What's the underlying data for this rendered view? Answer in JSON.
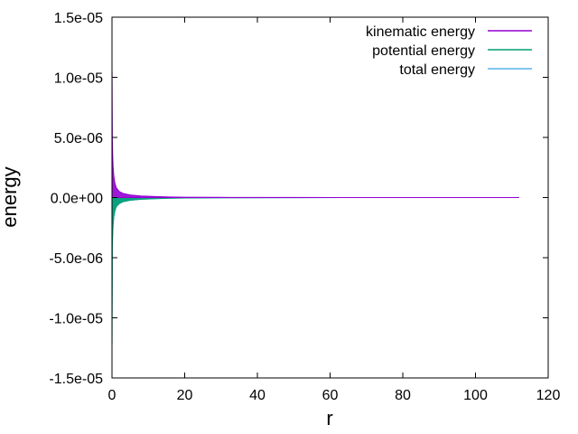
{
  "chart_data": {
    "type": "line",
    "title": "",
    "xlabel": "r",
    "ylabel": "energy",
    "xlim": [
      0,
      120
    ],
    "ylim": [
      -1.5e-05,
      1.5e-05
    ],
    "xticks": [
      0,
      20,
      40,
      60,
      80,
      100,
      120
    ],
    "xtick_labels": [
      "0",
      "20",
      "40",
      "60",
      "80",
      "100",
      "120"
    ],
    "yticks": [
      1.5e-05,
      1e-05,
      5e-06,
      0.0,
      -5e-06,
      -1e-05,
      -1.5e-05
    ],
    "ytick_labels": [
      "1.5e-05",
      "1.0e-05",
      "5.0e-06",
      "0.0e+00",
      "-5.0e-06",
      "-1.0e-05",
      "-1.5e-05"
    ],
    "grid": false,
    "legend": "top-right",
    "series": [
      {
        "name": "kinematic energy",
        "color": "#9400d3",
        "x": [
          0.02,
          0.1,
          0.2,
          0.3,
          0.5,
          0.8,
          1.2,
          2.0,
          3.0,
          5.0,
          8.0,
          12.0,
          16.0,
          20.0,
          30.0,
          50.0,
          80.0,
          112.0
        ],
        "y": [
          1.05e-05,
          5e-06,
          3.5e-06,
          2.6e-06,
          1.8e-06,
          1.2e-06,
          8e-07,
          5e-07,
          3.5e-07,
          2.2e-07,
          1.3e-07,
          8e-08,
          5e-08,
          3e-08,
          1.5e-08,
          6e-09,
          2e-09,
          1e-09
        ]
      },
      {
        "name": "potential energy",
        "color": "#009e73",
        "x": [
          0.02,
          0.1,
          0.2,
          0.3,
          0.5,
          0.8,
          1.2,
          2.0,
          3.0,
          5.0,
          8.0,
          12.0,
          16.0,
          20.0,
          30.0,
          50.0,
          80.0,
          112.0
        ],
        "y": [
          -1.22e-05,
          -4.1e-06,
          -3e-06,
          -2.3e-06,
          -1.6e-06,
          -1.1e-06,
          -7.5e-07,
          -5e-07,
          -3.5e-07,
          -2.3e-07,
          -1.4e-07,
          -9e-08,
          -6e-08,
          -3.5e-08,
          -1.6e-08,
          -6e-09,
          -2e-09,
          -1e-09
        ]
      },
      {
        "name": "total energy",
        "color": "#56b4e9",
        "x": [
          0.02,
          0.1,
          0.2,
          0.3,
          0.5,
          0.8,
          1.2,
          2.0,
          3.0,
          5.0,
          8.0,
          12.0,
          16.0,
          20.0,
          30.0,
          50.0,
          80.0,
          112.0
        ],
        "y": [
          -9.5e-06,
          -4e-06,
          -3e-06,
          -2.3e-06,
          -1.6e-06,
          -1.1e-06,
          -7.5e-07,
          -5e-07,
          -3.5e-07,
          -2.3e-07,
          -1.4e-07,
          -9e-08,
          -6e-08,
          -3.5e-08,
          -1.6e-08,
          -6e-09,
          -2e-09,
          -1e-09
        ]
      }
    ]
  }
}
